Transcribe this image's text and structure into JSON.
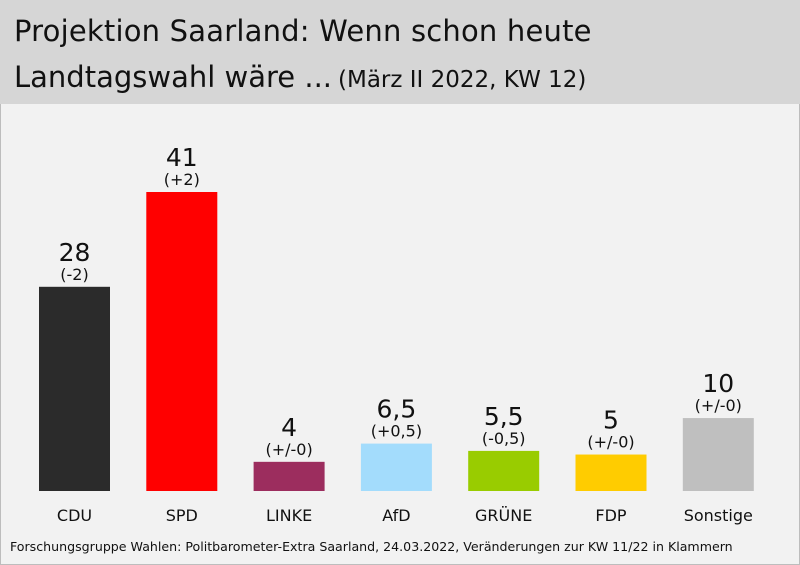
{
  "header": {
    "title_line1": "Projektion Saarland: Wenn schon heute",
    "title_line2": "Landtagswahl wäre ...",
    "subtitle": "(März II 2022, KW 12)"
  },
  "footer": {
    "source": "Forschungsgruppe Wahlen: Politbarometer-Extra Saarland, 24.03.2022, Veränderungen zur KW 11/22 in Klammern"
  },
  "chart_data": {
    "type": "bar",
    "title": "Projektion Saarland: Wenn schon heute Landtagswahl wäre ... (März II 2022, KW 12)",
    "xlabel": "",
    "ylabel": "",
    "ylim": [
      0,
      41
    ],
    "grid": false,
    "legend": "none",
    "categories": [
      "CDU",
      "SPD",
      "LINKE",
      "AfD",
      "GRÜNE",
      "FDP",
      "Sonstige"
    ],
    "values": [
      28,
      41,
      4,
      6.5,
      5.5,
      5,
      10
    ],
    "value_labels": [
      "28",
      "41",
      "4",
      "6,5",
      "5,5",
      "5",
      "10"
    ],
    "change_labels": [
      "(-2)",
      "(+2)",
      "(+/-0)",
      "(+0,5)",
      "(-0,5)",
      "(+/-0)",
      "(+/-0)"
    ],
    "colors": [
      "#2b2b2b",
      "#ff0000",
      "#9c2d5e",
      "#a3dcfc",
      "#99cc00",
      "#ffcc00",
      "#bfbfbf"
    ]
  }
}
